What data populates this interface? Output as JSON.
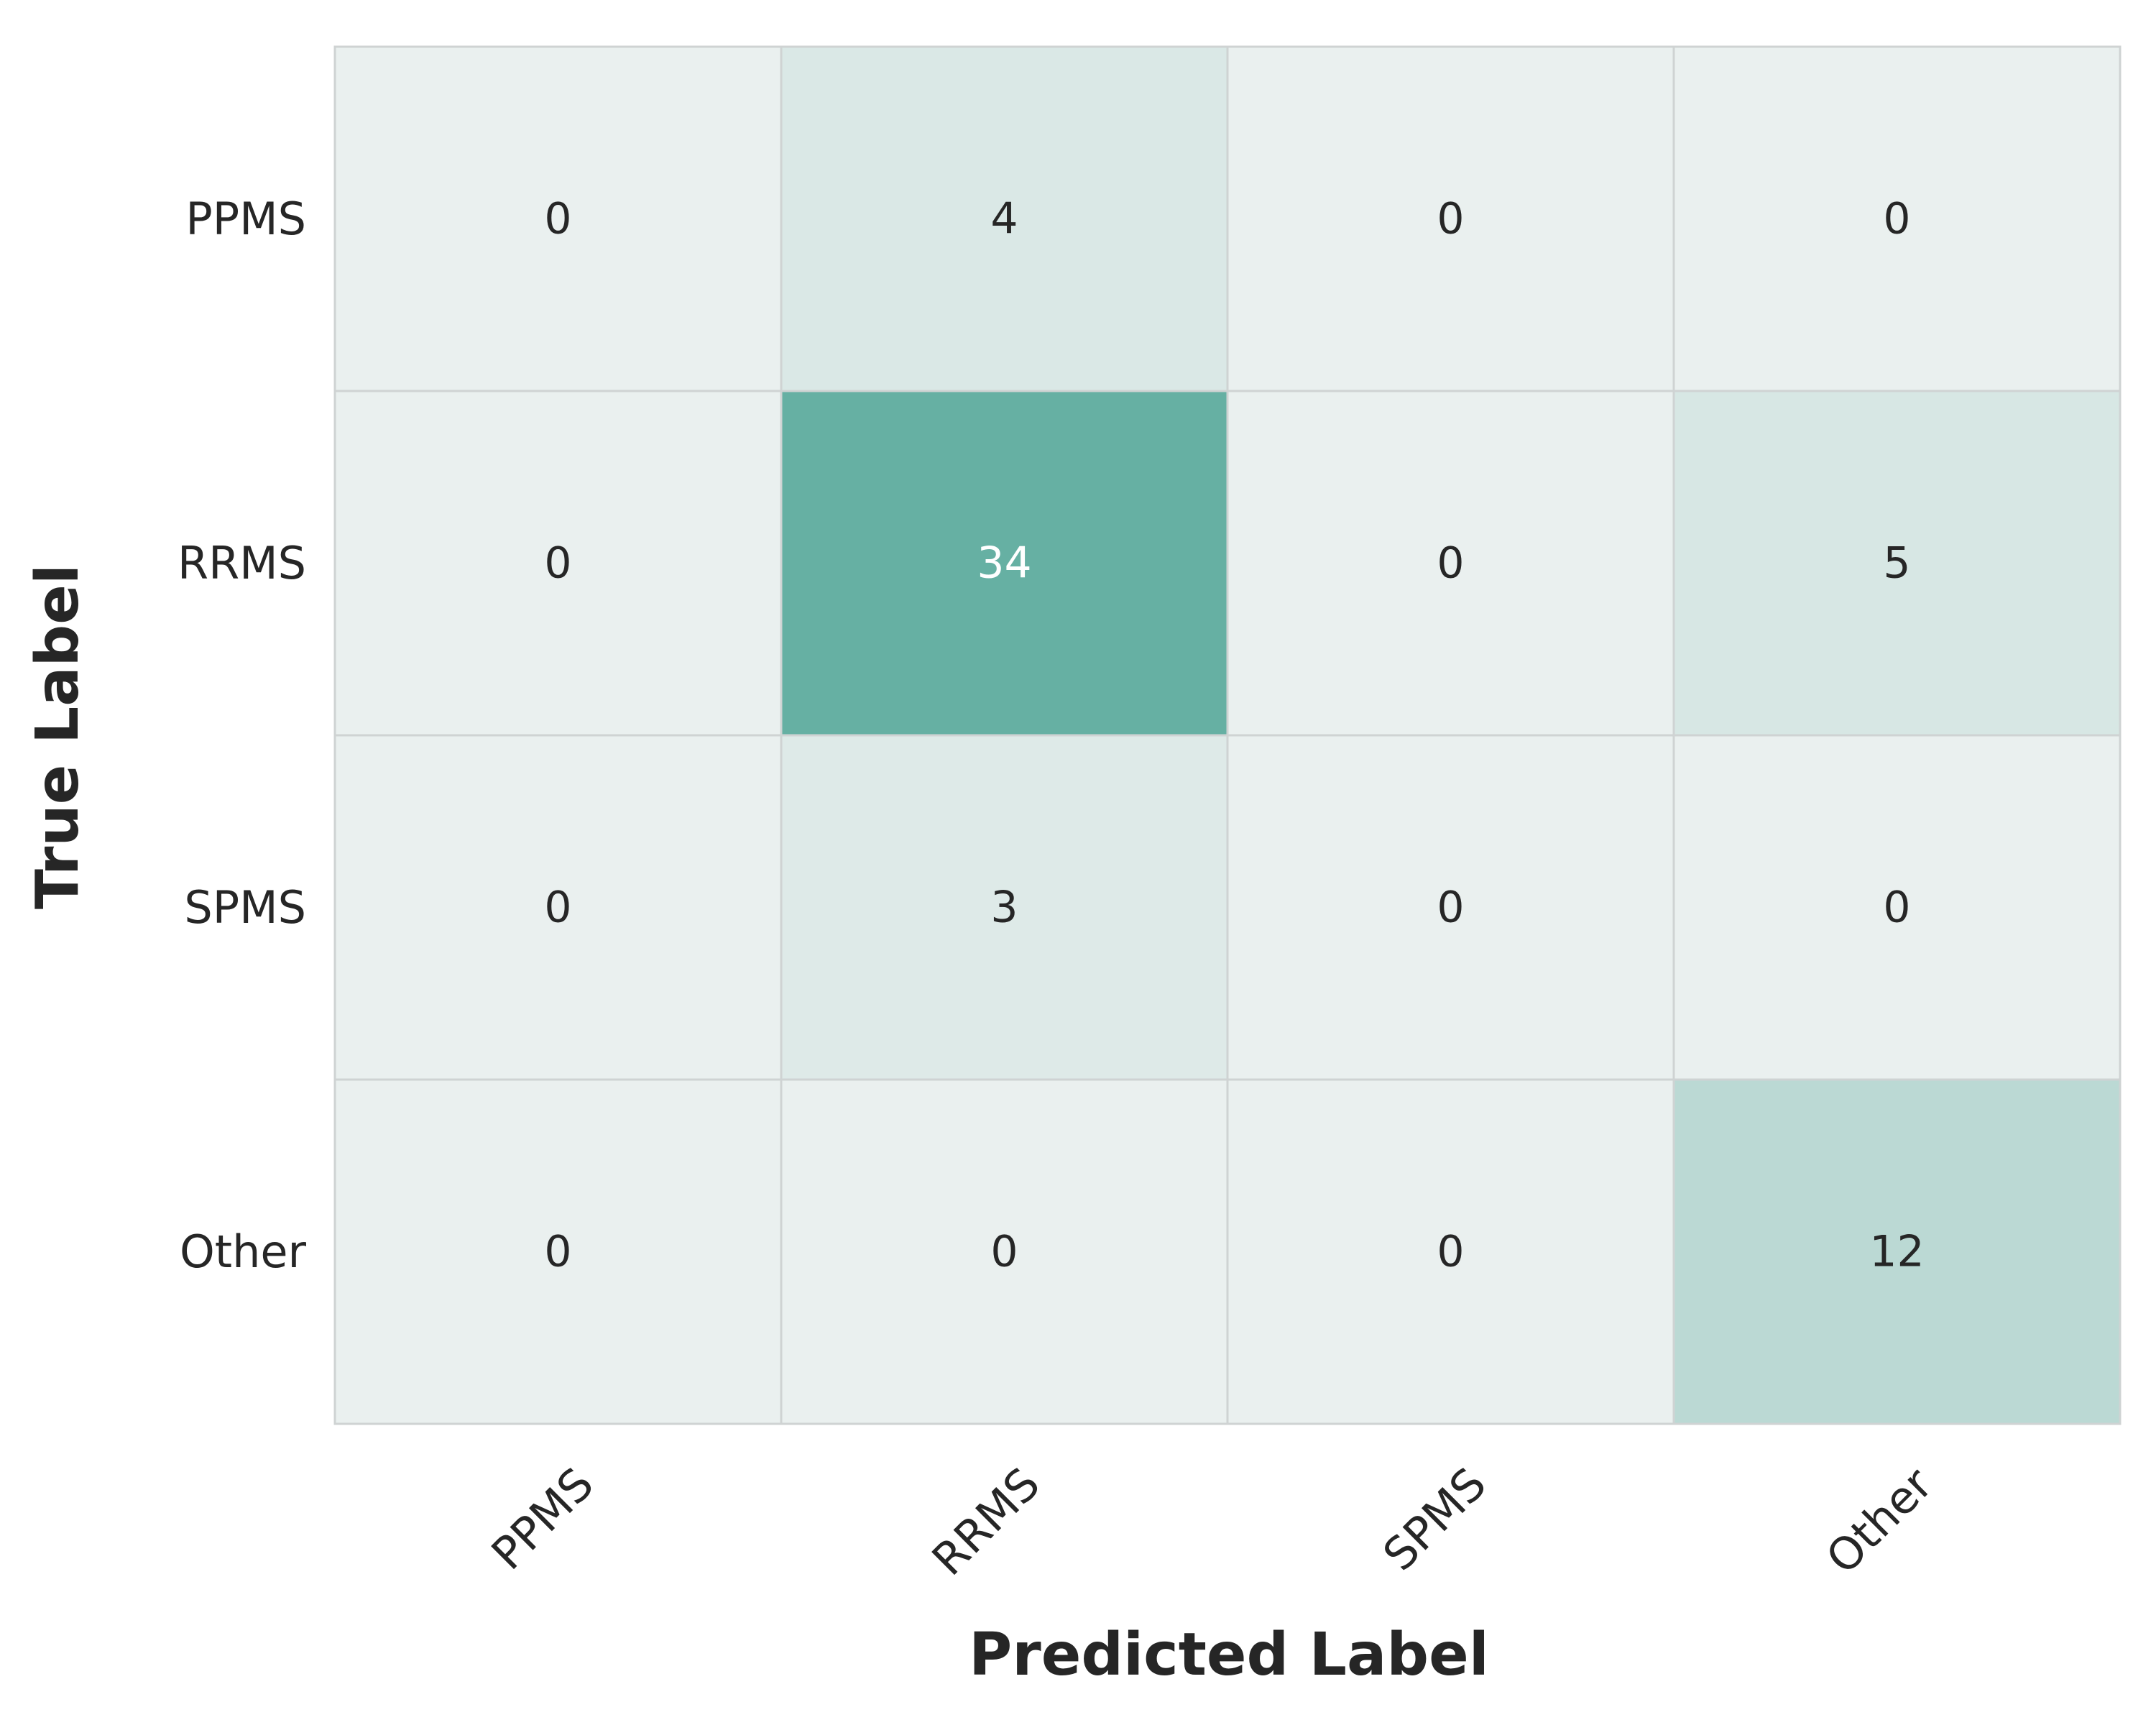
{
  "chart_data": {
    "type": "heatmap",
    "title": "",
    "xlabel": "Predicted Label",
    "ylabel": "True Label",
    "x_categories": [
      "PPMS",
      "RRMS",
      "SPMS",
      "Other"
    ],
    "y_categories": [
      "PPMS",
      "RRMS",
      "SPMS",
      "Other"
    ],
    "values": [
      [
        0,
        4,
        0,
        0
      ],
      [
        0,
        34,
        0,
        5
      ],
      [
        0,
        3,
        0,
        0
      ],
      [
        0,
        0,
        0,
        12
      ]
    ],
    "colormap": {
      "low": "#eaf0ef",
      "high": "#66b0a3"
    },
    "text_color_dark": "#262626",
    "text_color_light": "#ffffff",
    "cell_border_color": "#cfd3d3",
    "colorbar": false,
    "grid": false
  }
}
